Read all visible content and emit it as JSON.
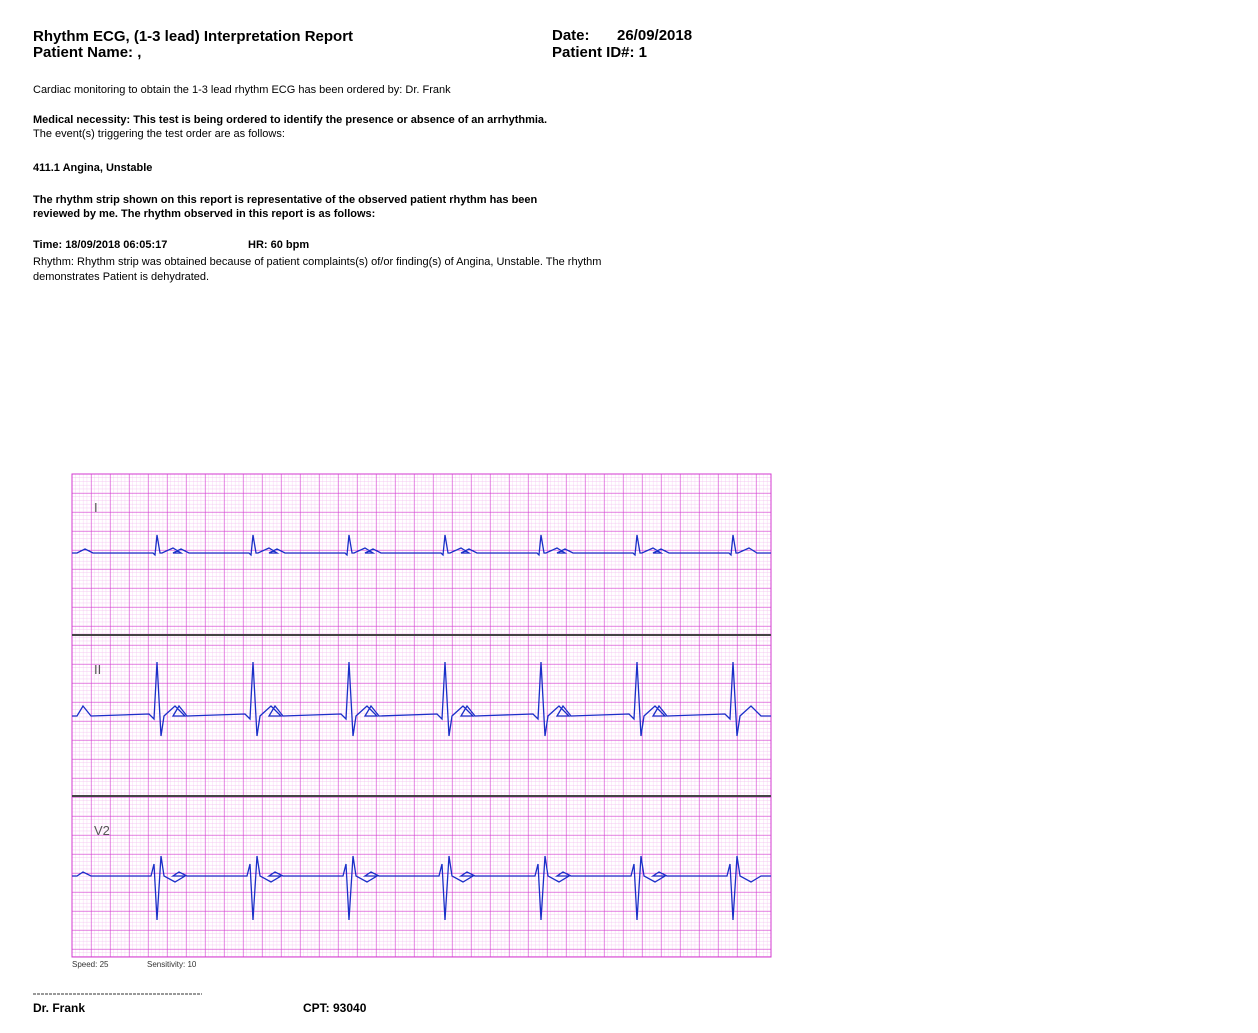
{
  "header": {
    "title": "Rhythm ECG, (1-3 lead) Interpretation Report",
    "patient_name": "Patient Name: ,",
    "date_label": "Date:",
    "date": "26/09/2018",
    "patient_id": "Patient ID#: 1"
  },
  "body": {
    "ordered_by": "Cardiac monitoring to obtain the 1-3 lead rhythm ECG has been ordered by: Dr. Frank",
    "necessity": "Medical necessity: This test is being ordered to identify the presence or absence of an arrhythmia.",
    "events_intro": "The event(s) triggering the test order are as follows:",
    "event": "411.1 Angina, Unstable",
    "review": [
      "The rhythm strip shown on this report is representative of the observed patient rhythm has been",
      "reviewed by me. The rhythm observed in this report is as follows:"
    ],
    "time": "Time: 18/09/2018 06:05:17",
    "hr": "HR: 60 bpm",
    "rhythm": [
      "Rhythm: Rhythm strip was obtained because of patient complaints(s) of/or finding(s) of Angina, Unstable. The rhythm",
      "demonstrates Patient is dehydrated."
    ]
  },
  "ecg": {
    "leads": [
      "I",
      "II",
      "V2"
    ],
    "speed": "Speed: 25",
    "sensitivity": "Sensitivity: 10"
  },
  "footer": {
    "signature": "Dr. Frank",
    "cpt": "CPT: 93040"
  }
}
